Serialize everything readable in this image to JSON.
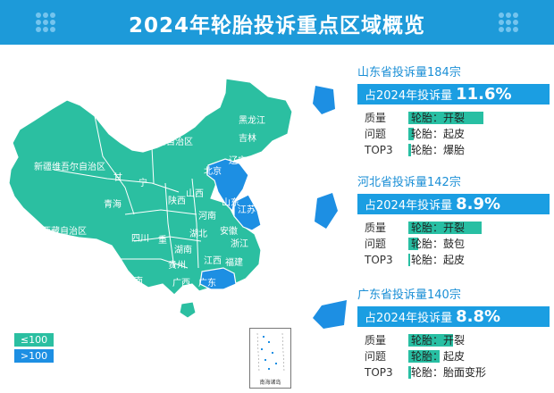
{
  "title": "2024年轮胎投诉重点区域概览",
  "colors": {
    "header": "#1d9ad9",
    "low": "#2bbfa1",
    "high": "#1d8fe3",
    "accent_text": "#1b8fd6",
    "pill": "#1b9ee2",
    "bar": "#28bfa3"
  },
  "legend": [
    {
      "label": "≤100",
      "color": "#2bbfa1"
    },
    {
      "label": ">100",
      "color": "#1d8fe3"
    }
  ],
  "inset_label": "南海诸岛",
  "province_labels": [
    {
      "name": "黑龙江"
    },
    {
      "name": "吉林"
    },
    {
      "name": "辽宁"
    },
    {
      "name": "内蒙古自治区"
    },
    {
      "name": "新疆维吾尔自治区"
    },
    {
      "name": "北京"
    },
    {
      "name": "甘"
    },
    {
      "name": "宁"
    },
    {
      "name": "山西"
    },
    {
      "name": "山东"
    },
    {
      "name": "陕西"
    },
    {
      "name": "河南"
    },
    {
      "name": "江苏"
    },
    {
      "name": "青海"
    },
    {
      "name": "西藏自治区"
    },
    {
      "name": "四川"
    },
    {
      "name": "湖北"
    },
    {
      "name": "安徽"
    },
    {
      "name": "浙江"
    },
    {
      "name": "重"
    },
    {
      "name": "湖南"
    },
    {
      "name": "江西"
    },
    {
      "name": "福建"
    },
    {
      "name": "贵州"
    },
    {
      "name": "云南"
    },
    {
      "name": "广西"
    },
    {
      "name": "广东"
    }
  ],
  "cards": [
    {
      "heading": "山东省投诉量184宗",
      "pill_label": "占2024年投诉量",
      "pill_pct": "11.6%",
      "side": [
        "质量",
        "问题",
        "TOP3"
      ],
      "items": [
        {
          "text": "轮胎：开裂",
          "share": 0.75
        },
        {
          "text": "轮胎：起皮",
          "share": 0.05
        },
        {
          "text": "轮胎：爆胎",
          "share": 0.03
        }
      ]
    },
    {
      "heading": "河北省投诉量142宗",
      "pill_label": "占2024年投诉量",
      "pill_pct": "8.9%",
      "side": [
        "质量",
        "问题",
        "TOP3"
      ],
      "items": [
        {
          "text": "轮胎：开裂",
          "share": 0.73
        },
        {
          "text": "轮胎：鼓包",
          "share": 0.1
        },
        {
          "text": "轮胎：起皮",
          "share": 0.02
        }
      ]
    },
    {
      "heading": "广东省投诉量140宗",
      "pill_label": "占2024年投诉量",
      "pill_pct": "8.8%",
      "side": [
        "质量",
        "问题",
        "TOP3"
      ],
      "items": [
        {
          "text": "轮胎：开裂",
          "share": 0.45
        },
        {
          "text": "轮胎：起皮",
          "share": 0.31
        },
        {
          "text": "轮胎：胎面变形",
          "share": 0.03
        }
      ]
    }
  ]
}
